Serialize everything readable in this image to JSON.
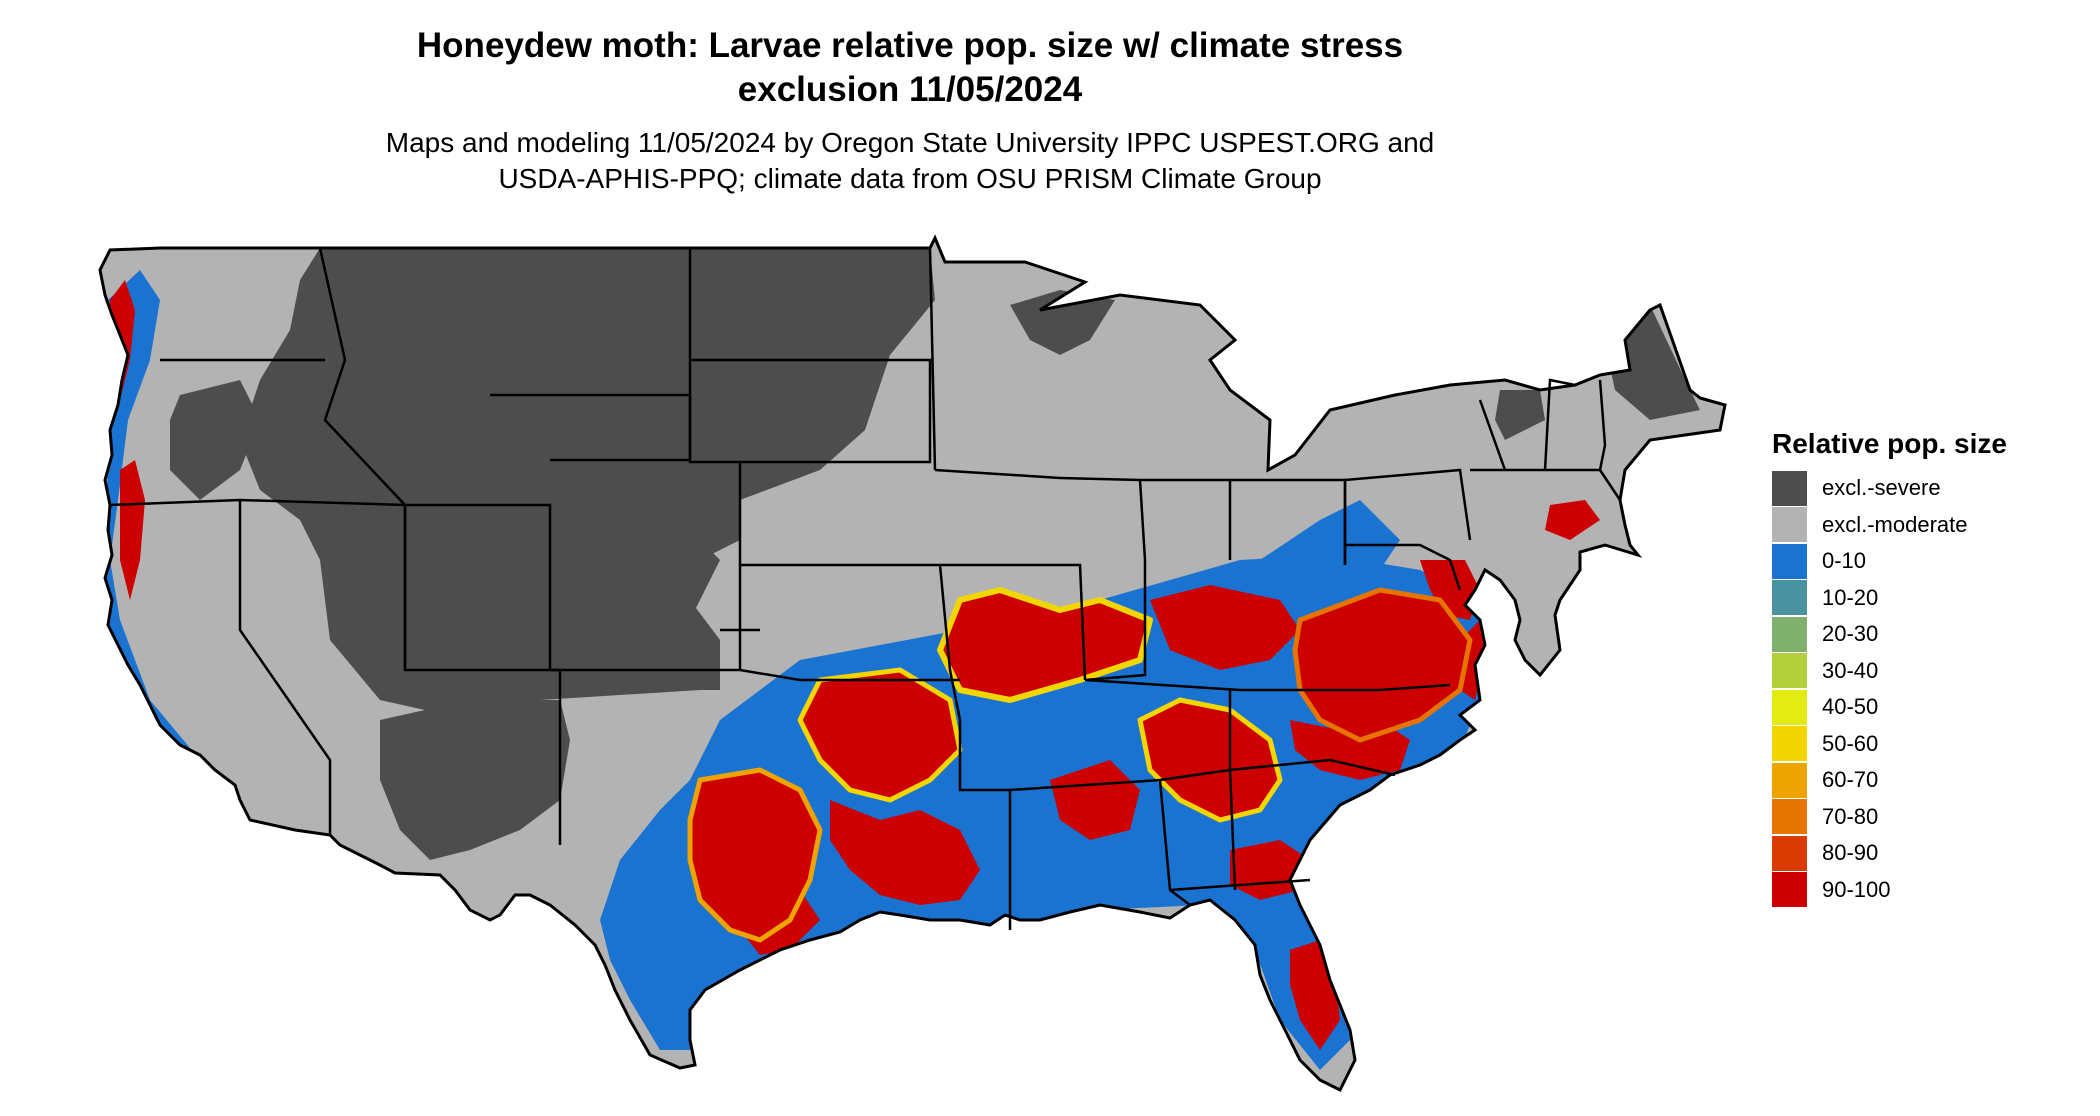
{
  "title_line1": "Honeydew moth: Larvae relative pop. size w/ climate stress",
  "title_line2": "exclusion 11/05/2024",
  "subtitle_line1": "Maps and modeling 11/05/2024 by Oregon State University IPPC USPEST.ORG and",
  "subtitle_line2": "USDA-APHIS-PPQ; climate data from OSU PRISM Climate Group",
  "legend": {
    "title": "Relative pop. size",
    "items": [
      {
        "label": "excl.-severe",
        "color": "#4d4d4d"
      },
      {
        "label": "excl.-moderate",
        "color": "#b3b3b3"
      },
      {
        "label": "0-10",
        "color": "#1a73d1"
      },
      {
        "label": "10-20",
        "color": "#4a92a0"
      },
      {
        "label": "20-30",
        "color": "#7fb06e"
      },
      {
        "label": "30-40",
        "color": "#b3d03c"
      },
      {
        "label": "40-50",
        "color": "#e3ec12"
      },
      {
        "label": "50-60",
        "color": "#f2d600"
      },
      {
        "label": "60-70",
        "color": "#eda300"
      },
      {
        "label": "70-80",
        "color": "#e67400"
      },
      {
        "label": "80-90",
        "color": "#d93b00"
      },
      {
        "label": "90-100",
        "color": "#cc0000"
      }
    ]
  },
  "map": {
    "region": "contiguous United States",
    "state_boundaries": true,
    "colors": {
      "severe": "#4d4d4d",
      "moderate": "#b3b3b3",
      "low": "#1a73d1",
      "high": "#cc0000",
      "mid": "#f2d600",
      "orange": "#e67400",
      "border": "#000000"
    }
  }
}
